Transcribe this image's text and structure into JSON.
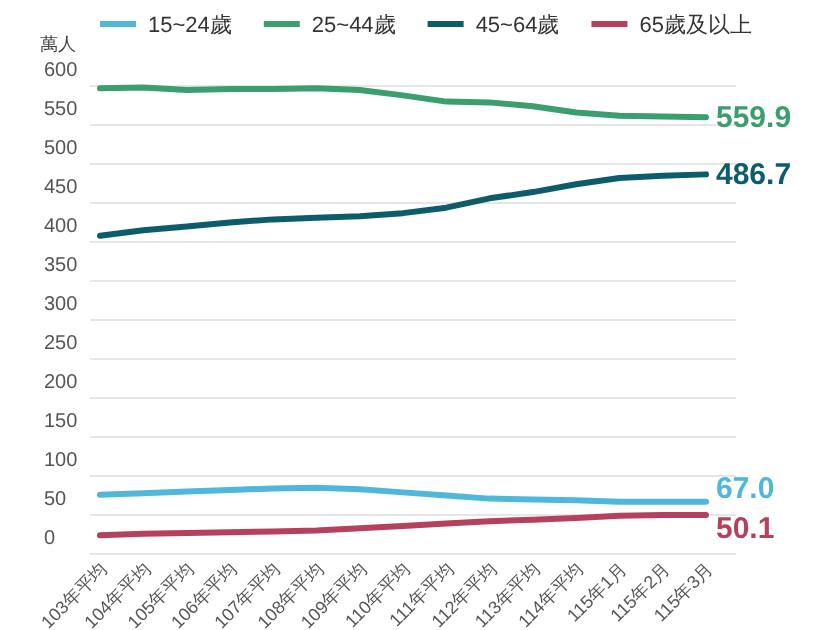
{
  "chart_data": {
    "type": "line",
    "ylabel": "萬人",
    "categories": [
      "103年平均",
      "104年平均",
      "105年平均",
      "106年平均",
      "107年平均",
      "108年平均",
      "109年平均",
      "110年平均",
      "111年平均",
      "112年平均",
      "113年平均",
      "114年平均",
      "115年1月",
      "115年2月",
      "115年3月"
    ],
    "series": [
      {
        "name": "15~24歲",
        "color": "#4fb7d9",
        "values": [
          76,
          78,
          80,
          82,
          84,
          85,
          83,
          79,
          75,
          71,
          70,
          69,
          67,
          67,
          67.0
        ],
        "value_labels": [
          null,
          null,
          null,
          null,
          null,
          null,
          null,
          null,
          null,
          null,
          null,
          null,
          null,
          null,
          "67.0"
        ]
      },
      {
        "name": "25~44歲",
        "color": "#3a9e6e",
        "values": [
          597,
          598,
          595,
          596,
          596,
          597,
          595,
          588,
          580,
          579,
          574,
          566,
          562,
          561,
          559.9
        ],
        "value_labels": [
          null,
          null,
          null,
          null,
          null,
          null,
          null,
          null,
          null,
          null,
          null,
          null,
          null,
          null,
          "559.9"
        ]
      },
      {
        "name": "45~64歲",
        "color": "#0d5c6b",
        "values": [
          408,
          415,
          420,
          425,
          429,
          431,
          433,
          437,
          444,
          456,
          464,
          474,
          482,
          485,
          486.7
        ],
        "value_labels": [
          null,
          null,
          null,
          null,
          null,
          null,
          null,
          null,
          null,
          null,
          null,
          null,
          null,
          null,
          "486.7"
        ]
      },
      {
        "name": "65歲及以上",
        "color": "#b5415c",
        "values": [
          24,
          26,
          27,
          28,
          29,
          30,
          33,
          36,
          39,
          42,
          44,
          46,
          49,
          50,
          50.1
        ],
        "value_labels": [
          null,
          null,
          null,
          null,
          null,
          null,
          null,
          null,
          null,
          null,
          null,
          null,
          null,
          null,
          "50.1"
        ]
      }
    ],
    "ylim": [
      0,
      600
    ],
    "yticks": [
      0,
      50,
      100,
      150,
      200,
      250,
      300,
      350,
      400,
      450,
      500,
      550,
      600
    ],
    "grid": "y",
    "legend": "top",
    "marker": "none",
    "line_style": "solid"
  }
}
